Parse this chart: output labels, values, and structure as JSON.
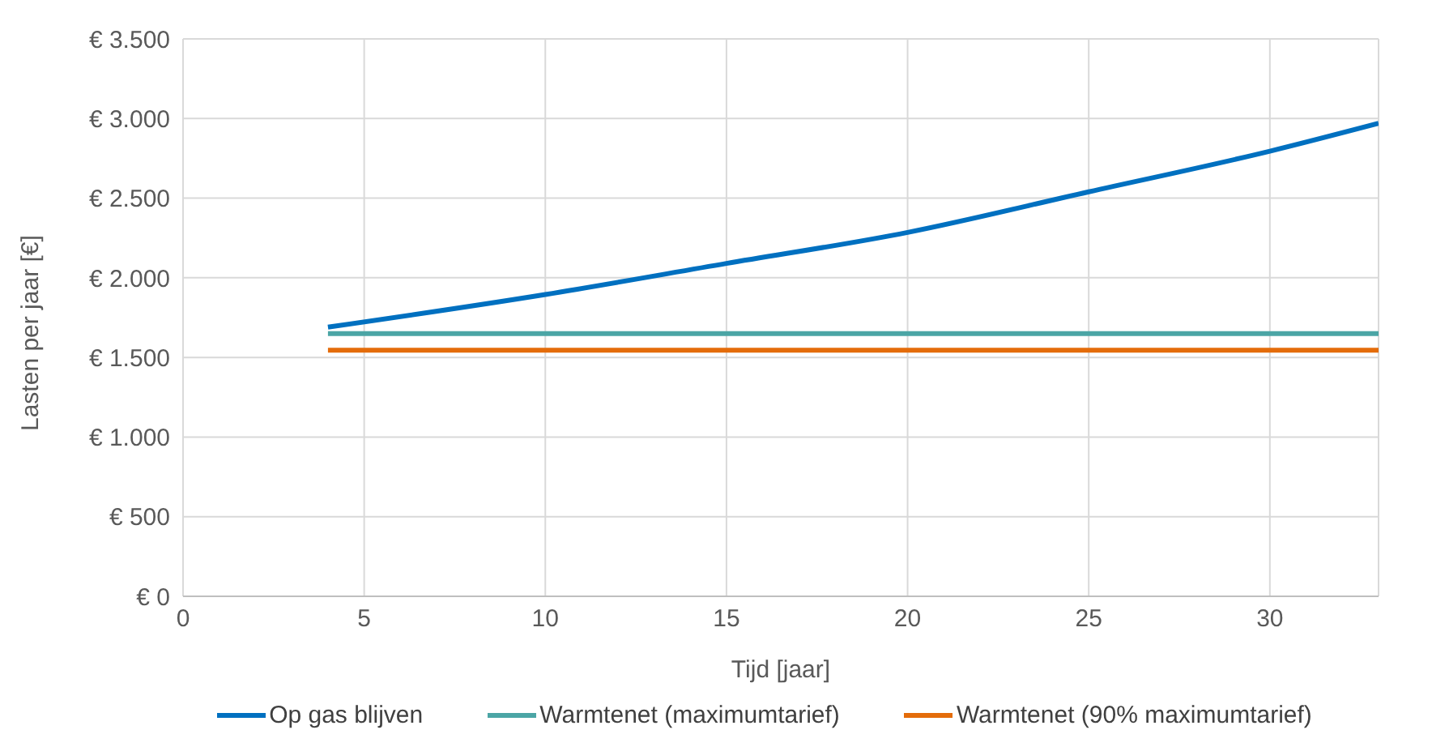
{
  "chart_data": {
    "type": "line",
    "xlabel": "Tijd [jaar]",
    "ylabel": "Lasten per jaar [€]",
    "xlim": [
      0,
      33
    ],
    "xticks": [
      0,
      5,
      10,
      15,
      20,
      25,
      30
    ],
    "ylim": [
      0,
      3500
    ],
    "yticks": [
      {
        "value": 0,
        "label": "€ 0"
      },
      {
        "value": 500,
        "label": "€ 500"
      },
      {
        "value": 1000,
        "label": "€ 1.000"
      },
      {
        "value": 1500,
        "label": "€ 1.500"
      },
      {
        "value": 2000,
        "label": "€ 2.000"
      },
      {
        "value": 2500,
        "label": "€ 2.500"
      },
      {
        "value": 3000,
        "label": "€ 3.000"
      },
      {
        "value": 3500,
        "label": "€ 3.500"
      }
    ],
    "grid": true,
    "legend": "bottom",
    "marker": "none",
    "line_style": "solid",
    "series": [
      {
        "name": "Op gas blijven",
        "color": "#0070c0",
        "x": [
          4,
          10,
          15,
          20,
          25,
          30,
          33
        ],
        "values": [
          1690,
          1895,
          2090,
          2285,
          2540,
          2795,
          2970
        ]
      },
      {
        "name": "Warmtenet (maximumtarief)",
        "color": "#4ba5a5",
        "x": [
          4,
          33
        ],
        "values": [
          1650,
          1650
        ]
      },
      {
        "name": "Warmtenet (90% maximumtarief)",
        "color": "#e46c0a",
        "x": [
          4,
          33
        ],
        "values": [
          1545,
          1545
        ]
      }
    ]
  }
}
